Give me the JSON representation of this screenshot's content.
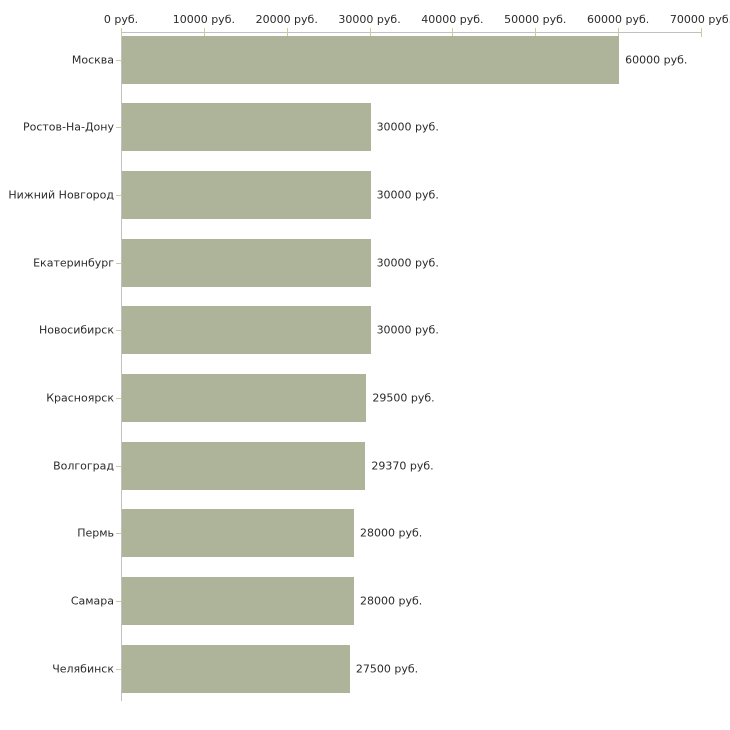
{
  "chart_data": {
    "type": "bar",
    "orientation": "horizontal",
    "title": "",
    "xlabel": "",
    "ylabel": "",
    "unit": "руб.",
    "categories": [
      "Москва",
      "Ростов-На-Дону",
      "Нижний Новгород",
      "Екатеринбург",
      "Новосибирск",
      "Красноярск",
      "Волгоград",
      "Пермь",
      "Самара",
      "Челябинск"
    ],
    "values": [
      60000,
      30000,
      30000,
      30000,
      30000,
      29500,
      29370,
      28000,
      28000,
      27500
    ],
    "value_labels": [
      "60000 руб.",
      "30000 руб.",
      "30000 руб.",
      "30000 руб.",
      "30000 руб.",
      "29500 руб.",
      "29370 руб.",
      "28000 руб.",
      "28000 руб.",
      "27500 руб."
    ],
    "x_ticks": [
      0,
      10000,
      20000,
      30000,
      40000,
      50000,
      60000,
      70000
    ],
    "x_tick_labels": [
      "0 руб.",
      "10000 руб.",
      "20000 руб.",
      "30000 руб.",
      "40000 руб.",
      "50000 руб.",
      "60000 руб.",
      "70000 руб."
    ],
    "xlim": [
      0,
      70000
    ],
    "grid": false,
    "legend": false,
    "axis_position": "top",
    "colors": {
      "bar": "#aeb49a",
      "axis": "#c0c0c0",
      "tick": "#cccc99",
      "text": "#2b2b2b",
      "background": "#ffffff"
    }
  }
}
